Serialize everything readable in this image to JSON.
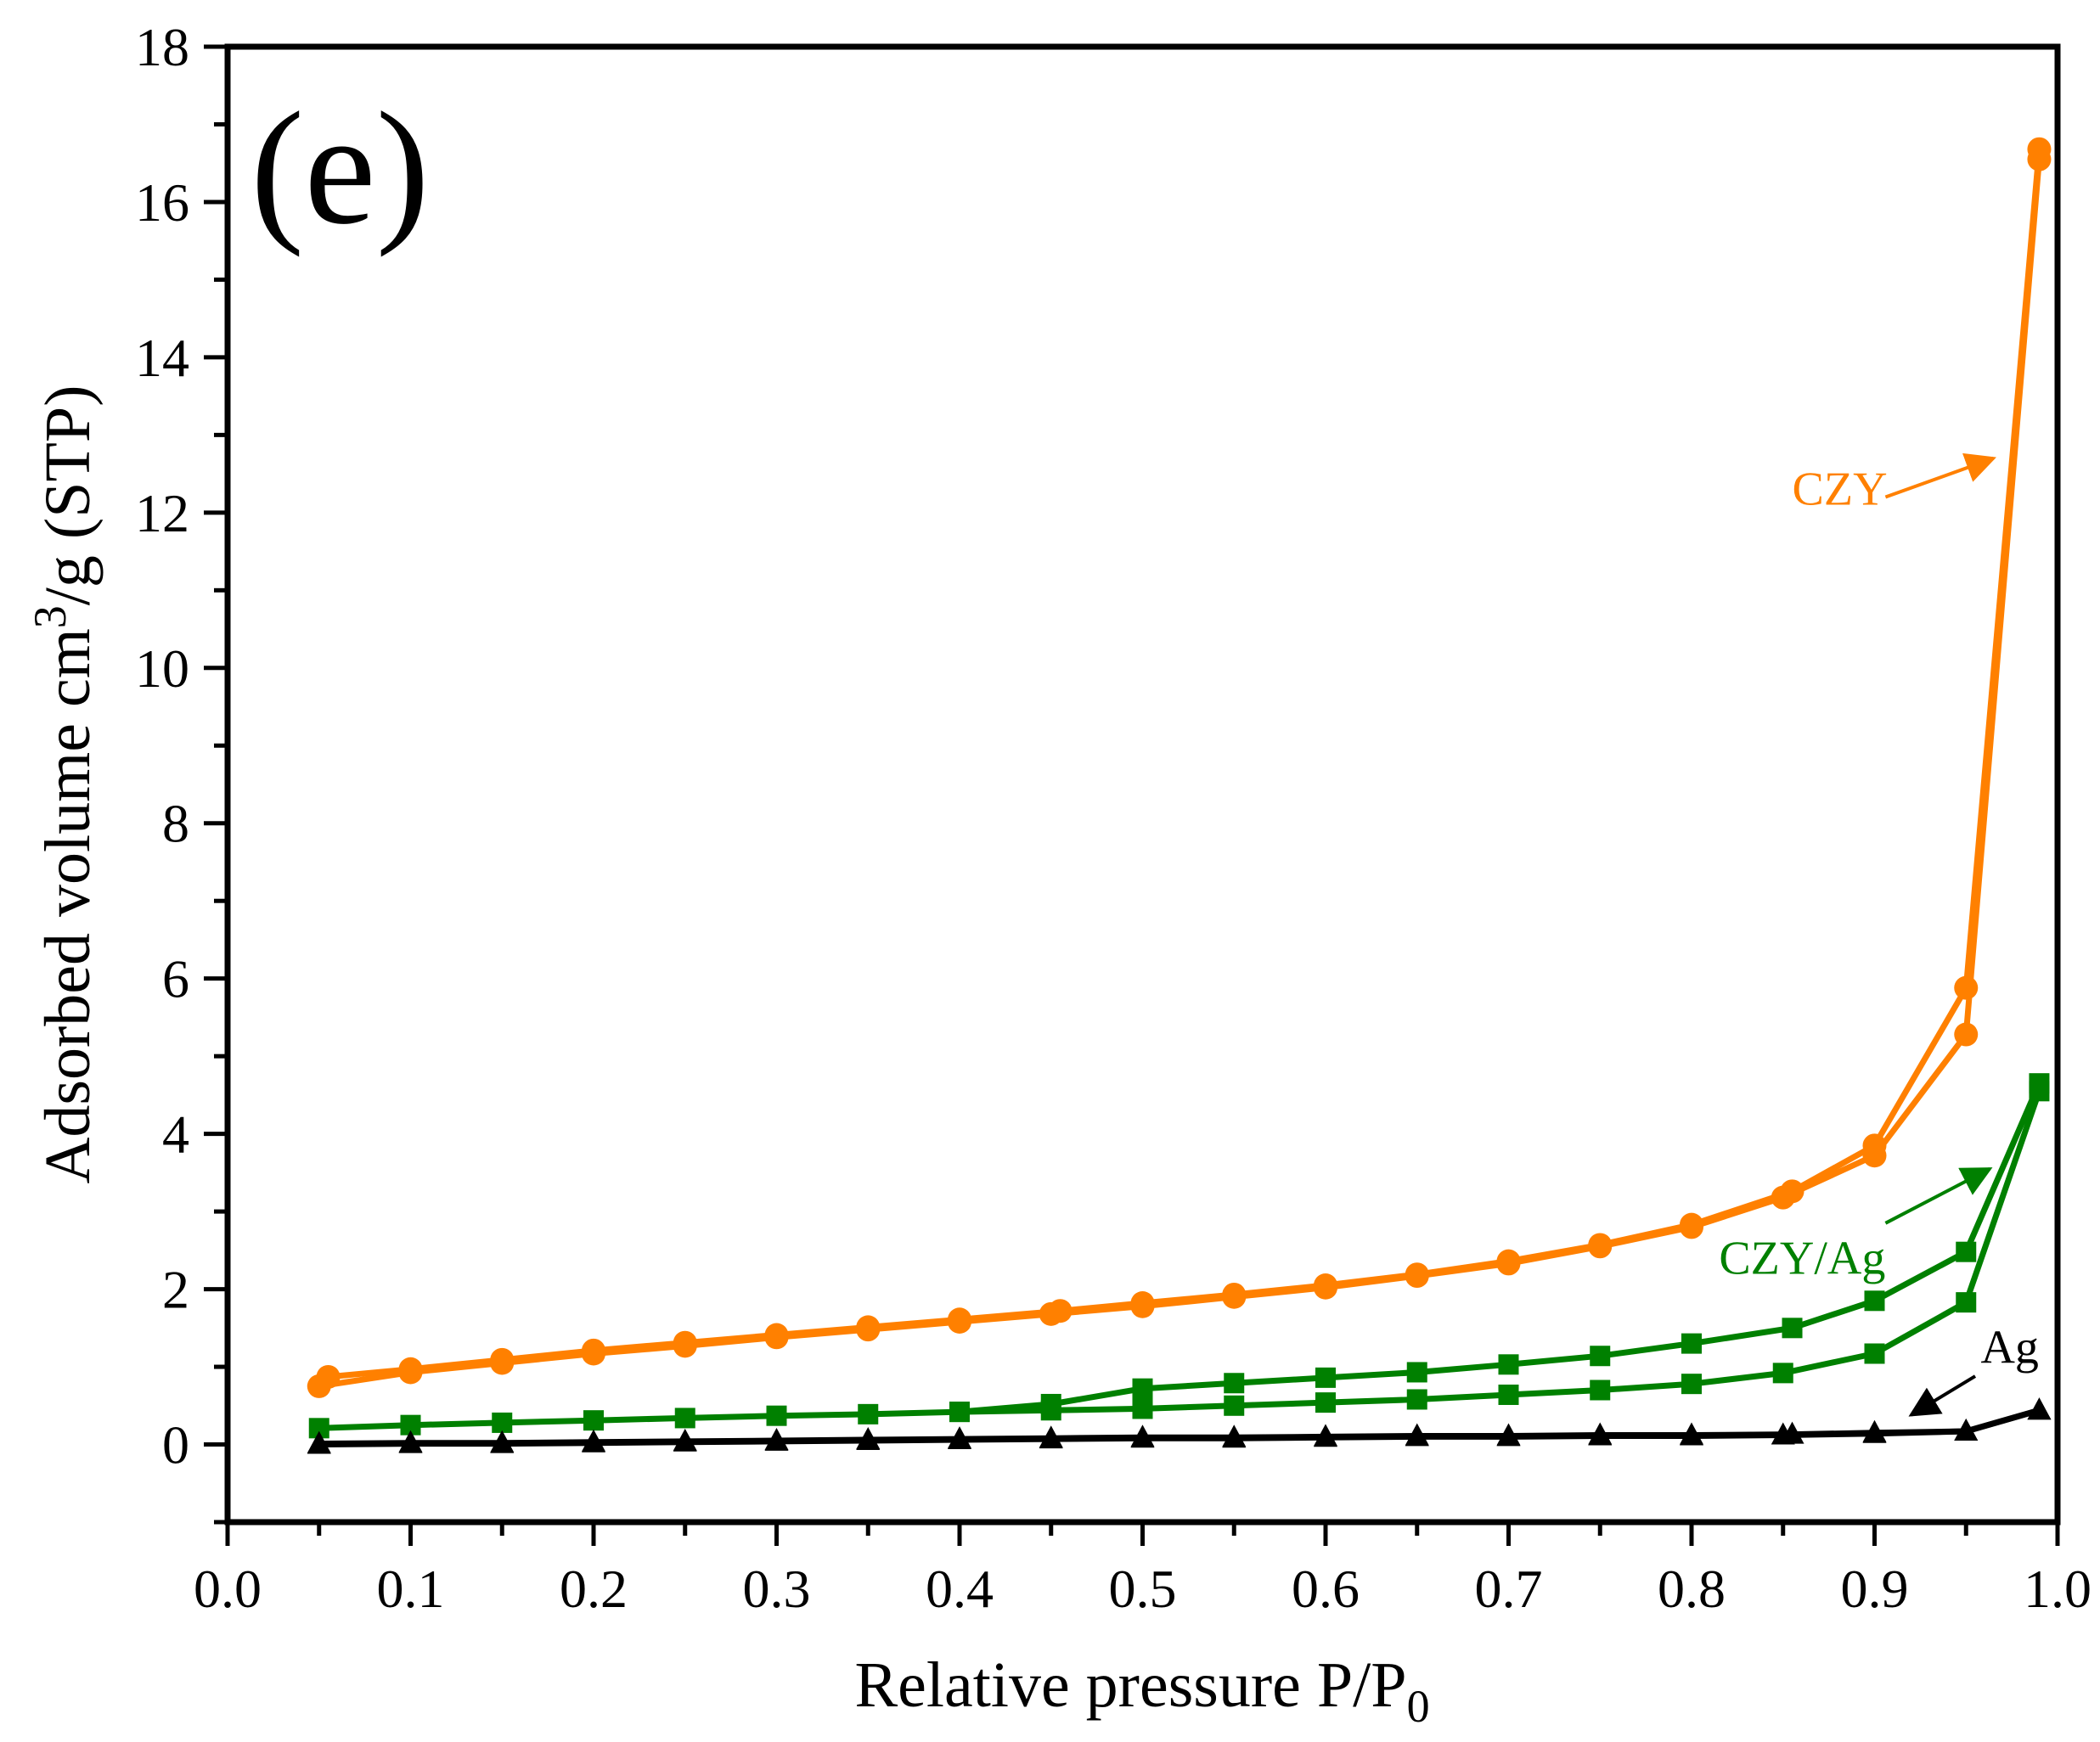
{
  "chart_data": {
    "type": "line",
    "panel_label": "(e)",
    "xlabel": "Relative pressure P/P",
    "xlabel_sub": "0",
    "ylabel": "Adsorbed volume cm",
    "ylabel_sup": "3",
    "ylabel_tail": "/g (STP)",
    "xlim": [
      0.0,
      1.0
    ],
    "ylim": [
      -1,
      18
    ],
    "x_ticks": [
      "0.0",
      "0.1",
      "0.2",
      "0.3",
      "0.4",
      "0.5",
      "0.6",
      "0.7",
      "0.8",
      "0.9",
      "1.0"
    ],
    "y_ticks": [
      "0",
      "2",
      "4",
      "6",
      "8",
      "10",
      "12",
      "14",
      "16",
      "18"
    ],
    "grid": false,
    "series": [
      {
        "name": "CZY",
        "color": "#FF8000",
        "marker": "circle",
        "branches": [
          {
            "label": "adsorption",
            "x": [
              0.05,
              0.1,
              0.15,
              0.2,
              0.25,
              0.3,
              0.35,
              0.4,
              0.45,
              0.5,
              0.55,
              0.6,
              0.65,
              0.7,
              0.75,
              0.8,
              0.85,
              0.9,
              0.95,
              0.99
            ],
            "y": [
              0.75,
              0.93,
              1.05,
              1.17,
              1.27,
              1.38,
              1.48,
              1.58,
              1.68,
              1.78,
              1.9,
              2.02,
              2.17,
              2.33,
              2.55,
              2.8,
              3.18,
              3.72,
              5.28,
              16.55
            ]
          },
          {
            "label": "desorption",
            "x": [
              0.99,
              0.95,
              0.9,
              0.855,
              0.8,
              0.75,
              0.7,
              0.65,
              0.6,
              0.55,
              0.5,
              0.455,
              0.4,
              0.35,
              0.3,
              0.25,
              0.2,
              0.15,
              0.1,
              0.055
            ],
            "y": [
              16.68,
              5.88,
              3.85,
              3.26,
              2.83,
              2.57,
              2.36,
              2.19,
              2.05,
              1.93,
              1.82,
              1.72,
              1.61,
              1.51,
              1.41,
              1.31,
              1.21,
              1.09,
              0.97,
              0.87
            ]
          }
        ]
      },
      {
        "name": "CZY/Ag",
        "color": "#008000",
        "marker": "square",
        "branches": [
          {
            "label": "adsorption",
            "x": [
              0.05,
              0.1,
              0.15,
              0.2,
              0.25,
              0.3,
              0.35,
              0.4,
              0.45,
              0.5,
              0.55,
              0.6,
              0.65,
              0.7,
              0.75,
              0.8,
              0.85,
              0.9,
              0.95,
              0.99
            ],
            "y": [
              0.21,
              0.25,
              0.28,
              0.31,
              0.34,
              0.37,
              0.39,
              0.42,
              0.44,
              0.46,
              0.5,
              0.54,
              0.58,
              0.64,
              0.7,
              0.78,
              0.92,
              1.17,
              1.83,
              4.55
            ]
          },
          {
            "label": "desorption",
            "x": [
              0.99,
              0.95,
              0.9,
              0.855,
              0.8,
              0.75,
              0.7,
              0.65,
              0.6,
              0.55,
              0.5,
              0.45,
              0.4
            ],
            "y": [
              4.65,
              2.48,
              1.85,
              1.5,
              1.3,
              1.14,
              1.03,
              0.93,
              0.86,
              0.79,
              0.72,
              0.52,
              0.42
            ]
          }
        ]
      },
      {
        "name": "Ag",
        "color": "#000000",
        "marker": "triangle",
        "branches": [
          {
            "label": "adsorption",
            "x": [
              0.05,
              0.1,
              0.15,
              0.2,
              0.25,
              0.3,
              0.35,
              0.4,
              0.45,
              0.5,
              0.55,
              0.6,
              0.65,
              0.7,
              0.75,
              0.8,
              0.85,
              0.9,
              0.95,
              0.99
            ],
            "y": [
              0.0,
              0.01,
              0.01,
              0.02,
              0.03,
              0.04,
              0.05,
              0.06,
              0.07,
              0.08,
              0.08,
              0.09,
              0.1,
              0.1,
              0.11,
              0.11,
              0.12,
              0.14,
              0.17,
              0.44
            ]
          },
          {
            "label": "desorption",
            "x": [
              0.99,
              0.95,
              0.9,
              0.855,
              0.8,
              0.75,
              0.7,
              0.65,
              0.6,
              0.55,
              0.5,
              0.45,
              0.4,
              0.35,
              0.3,
              0.25,
              0.2,
              0.15,
              0.1,
              0.05
            ],
            "y": [
              0.44,
              0.17,
              0.15,
              0.13,
              0.12,
              0.12,
              0.11,
              0.11,
              0.1,
              0.09,
              0.09,
              0.08,
              0.07,
              0.06,
              0.05,
              0.04,
              0.03,
              0.02,
              0.02,
              0.01
            ]
          }
        ]
      }
    ],
    "annotations": [
      {
        "text": "CZY",
        "color": "#FF8000",
        "text_at": [
          0.855,
          12.1
        ],
        "arrow_from": [
          0.906,
          12.2
        ],
        "arrow_to": [
          0.965,
          12.7
        ]
      },
      {
        "text": "CZY/Ag",
        "color": "#008000",
        "text_at": [
          0.815,
          2.2
        ],
        "arrow_from": [
          0.906,
          2.85
        ],
        "arrow_to": [
          0.963,
          3.55
        ]
      },
      {
        "text": "Ag",
        "color": "#000000",
        "text_at": [
          0.958,
          1.05
        ],
        "arrow_from": [
          0.955,
          0.88
        ],
        "arrow_to": [
          0.92,
          0.38
        ]
      }
    ]
  }
}
